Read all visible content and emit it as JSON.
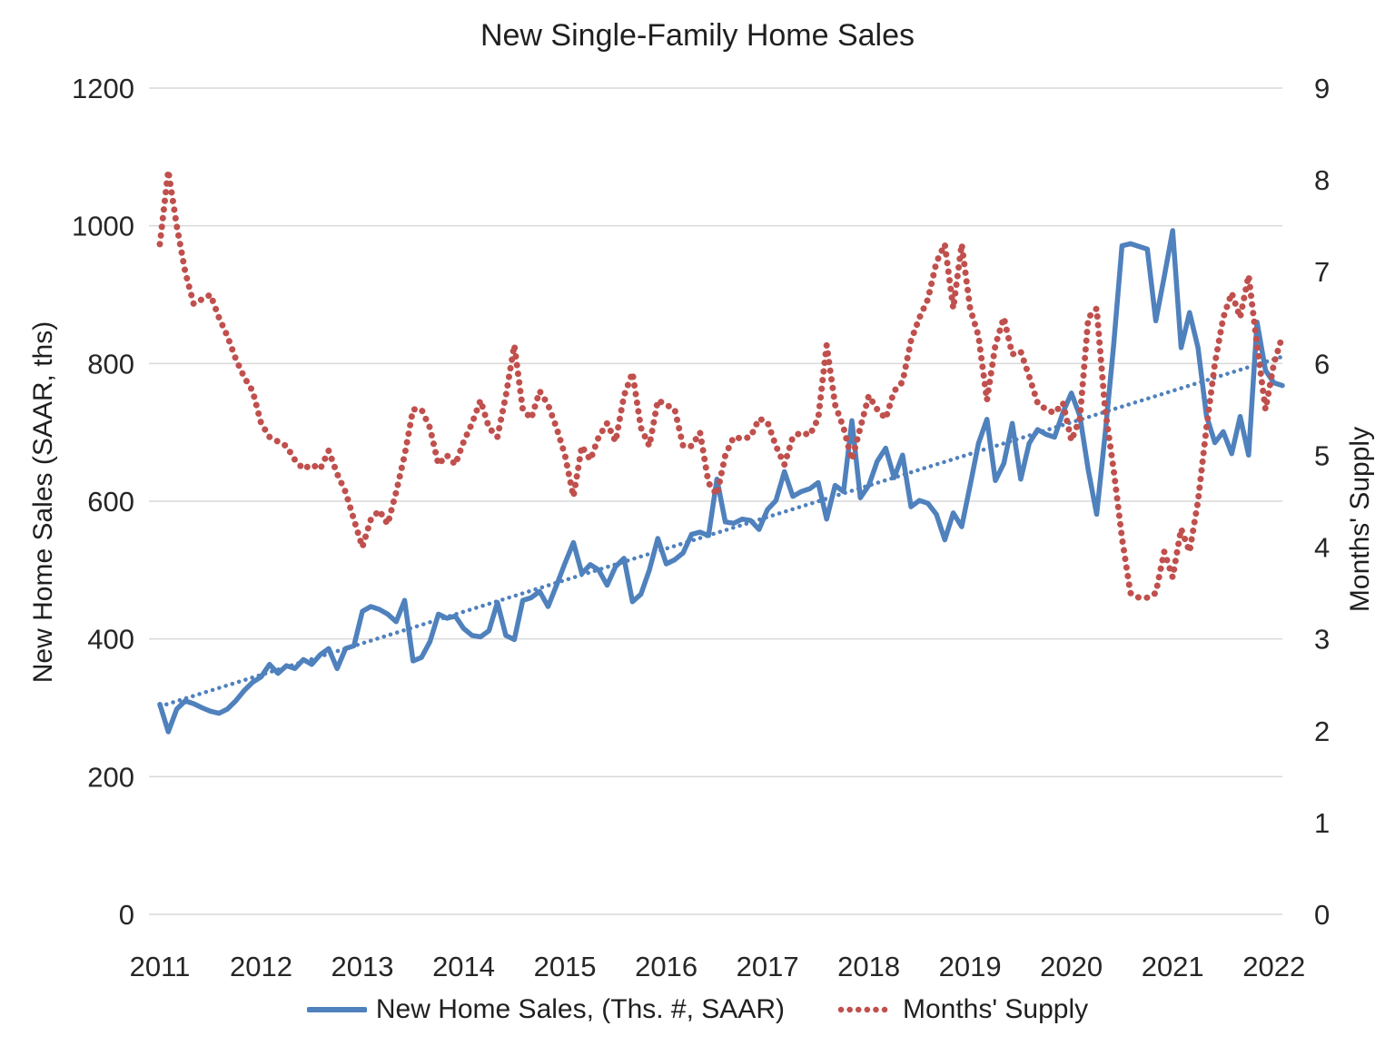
{
  "chart_data": {
    "type": "line",
    "title": "New Single-Family Home Sales",
    "ylabel_left": "New Home Sales (SAAR, ths)",
    "ylabel_right": "Months' Supply",
    "x_tick_labels": [
      "2011",
      "2012",
      "2013",
      "2014",
      "2015",
      "2016",
      "2017",
      "2018",
      "2019",
      "2020",
      "2021",
      "2022"
    ],
    "x_months_per_tick": 12,
    "x_range_note": "monthly data, Jan 2011 through Feb 2022",
    "y_left": {
      "min": 0,
      "max": 1200,
      "step": 200,
      "ticks": [
        0,
        200,
        400,
        600,
        800,
        1000,
        1200
      ]
    },
    "y_right": {
      "min": 0,
      "max": 9,
      "step": 1,
      "ticks": [
        0,
        1,
        2,
        3,
        4,
        5,
        6,
        7,
        8,
        9
      ]
    },
    "grid": true,
    "legend_position": "bottom",
    "colors": {
      "sales": "#4f81bd",
      "supply": "#c0504d",
      "trend": "#4f81bd",
      "gridline": "#d9d9d9"
    },
    "series": [
      {
        "name": "New Home Sales, (Ths. #, SAAR)",
        "axis": "left",
        "style": "solid",
        "color": "#4f81bd",
        "values": [
          305,
          265,
          298,
          310,
          306,
          300,
          295,
          292,
          298,
          310,
          325,
          337,
          345,
          363,
          350,
          361,
          357,
          370,
          363,
          377,
          386,
          357,
          386,
          390,
          440,
          447,
          443,
          436,
          425,
          456,
          368,
          373,
          396,
          436,
          430,
          433,
          415,
          405,
          403,
          412,
          453,
          405,
          399,
          456,
          460,
          469,
          447,
          478,
          510,
          540,
          495,
          508,
          500,
          478,
          505,
          517,
          454,
          465,
          500,
          546,
          509,
          515,
          525,
          552,
          555,
          550,
          632,
          570,
          568,
          574,
          572,
          559,
          588,
          601,
          643,
          607,
          614,
          618,
          627,
          574,
          623,
          614,
          717,
          605,
          623,
          658,
          677,
          634,
          667,
          592,
          601,
          597,
          581,
          544,
          583,
          563,
          623,
          684,
          719,
          630,
          655,
          713,
          632,
          684,
          704,
          697,
          693,
          729,
          757,
          724,
          645,
          581,
          697,
          825,
          971,
          974,
          970,
          966,
          862,
          926,
          993,
          823,
          874,
          823,
          724,
          685,
          701,
          669,
          723,
          667,
          860,
          790,
          772,
          768
        ]
      },
      {
        "name": "Months' Supply",
        "axis": "right",
        "style": "dotted",
        "color": "#c0504d",
        "values": [
          7.3,
          8.1,
          7.5,
          7.0,
          6.65,
          6.7,
          6.75,
          6.5,
          6.3,
          6.05,
          5.85,
          5.7,
          5.35,
          5.2,
          5.15,
          5.1,
          4.95,
          4.85,
          4.9,
          4.85,
          5.05,
          4.8,
          4.6,
          4.3,
          4.0,
          4.3,
          4.4,
          4.25,
          4.6,
          5.0,
          5.5,
          5.5,
          5.3,
          4.9,
          5.0,
          4.9,
          5.15,
          5.35,
          5.6,
          5.3,
          5.2,
          5.65,
          6.2,
          5.5,
          5.4,
          5.7,
          5.55,
          5.3,
          5.0,
          4.55,
          5.1,
          4.95,
          5.2,
          5.35,
          5.15,
          5.65,
          5.9,
          5.3,
          5.1,
          5.6,
          5.55,
          5.5,
          5.1,
          5.1,
          5.25,
          4.7,
          4.57,
          5.0,
          5.2,
          5.18,
          5.2,
          5.4,
          5.36,
          5.1,
          4.9,
          5.2,
          5.25,
          5.22,
          5.4,
          6.2,
          5.55,
          5.3,
          4.95,
          5.3,
          5.65,
          5.5,
          5.4,
          5.7,
          5.8,
          6.25,
          6.5,
          6.7,
          7.1,
          7.3,
          6.6,
          7.3,
          6.6,
          6.3,
          5.6,
          6.2,
          6.5,
          6.1,
          6.13,
          5.86,
          5.57,
          5.5,
          5.46,
          5.57,
          5.16,
          5.4,
          6.5,
          6.6,
          5.5,
          4.85,
          4.1,
          3.5,
          3.45,
          3.45,
          3.5,
          3.95,
          3.67,
          4.2,
          3.95,
          4.5,
          5.3,
          6.0,
          6.5,
          6.77,
          6.5,
          6.96,
          6.2,
          5.5,
          6.0,
          6.3
        ]
      }
    ],
    "trendline": {
      "series": "New Home Sales, (Ths. #, SAAR)",
      "axis": "left",
      "style": "dotted",
      "color": "#4f81bd",
      "start": 302,
      "end": 810
    }
  }
}
